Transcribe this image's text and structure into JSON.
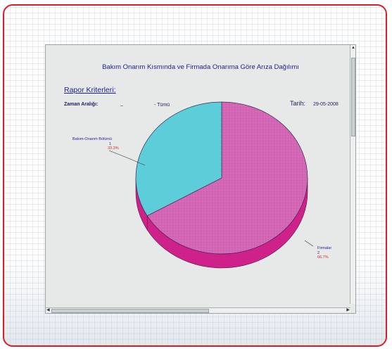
{
  "report": {
    "title": "Bakım Onarım Kısmında ve Firmada Onarıma Göre Arıza Dağılımı",
    "criteria_label": "Rapor Kriterleri:",
    "time_range_label": "Zaman Aralığı:",
    "time_range_value": "_",
    "scope_value": "- Tümü",
    "date_label": "Tarih:",
    "date_value": "29-05-2008"
  },
  "chart_data": {
    "type": "pie",
    "title": "Bakım Onarım Kısmında ve Firmada Onarıma Göre Arıza Dağılımı",
    "slices": [
      {
        "label": "Bakım-Onarım Bölümü",
        "count": "1",
        "percent": "33.3%",
        "value": 33.3,
        "color": "#5ccdd9"
      },
      {
        "label": "Firmalar",
        "count": "2",
        "percent": "66.7%",
        "value": 66.7,
        "color": "#d868b8"
      }
    ],
    "side_color": "#d4208c",
    "style": "3d"
  }
}
